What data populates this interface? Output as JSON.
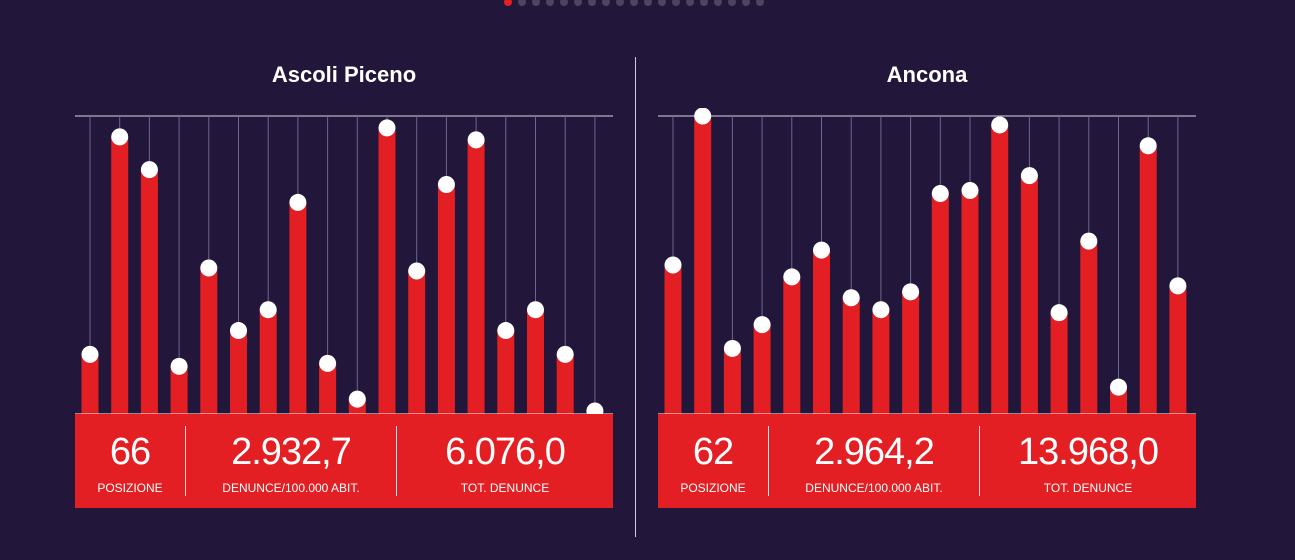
{
  "pagination": {
    "count": 19,
    "active": 0
  },
  "colors": {
    "background": "#22173b",
    "bar": "#e41f23",
    "marker": "#ffffff",
    "gridline": "#6c6691"
  },
  "chart_data": [
    {
      "type": "bar",
      "title": "Ascoli Piceno",
      "ylim": [
        0,
        100
      ],
      "values": [
        20,
        93,
        82,
        16,
        49,
        28,
        35,
        71,
        17,
        5,
        96,
        48,
        77,
        92,
        28,
        35,
        20,
        1
      ],
      "stats": [
        {
          "value": "66",
          "label": "POSIZIONE"
        },
        {
          "value": "2.932,7",
          "label": "DENUNCE/100.000 ABIT."
        },
        {
          "value": "6.076,0",
          "label": "TOT. DENUNCE"
        }
      ]
    },
    {
      "type": "bar",
      "title": "Ancona",
      "ylim": [
        0,
        100
      ],
      "values": [
        50,
        100,
        22,
        30,
        46,
        55,
        39,
        35,
        41,
        74,
        75,
        97,
        80,
        34,
        58,
        9,
        90,
        43
      ],
      "stats": [
        {
          "value": "62",
          "label": "POSIZIONE"
        },
        {
          "value": "2.964,2",
          "label": "DENUNCE/100.000 ABIT."
        },
        {
          "value": "13.968,0",
          "label": "TOT. DENUNCE"
        }
      ]
    }
  ]
}
